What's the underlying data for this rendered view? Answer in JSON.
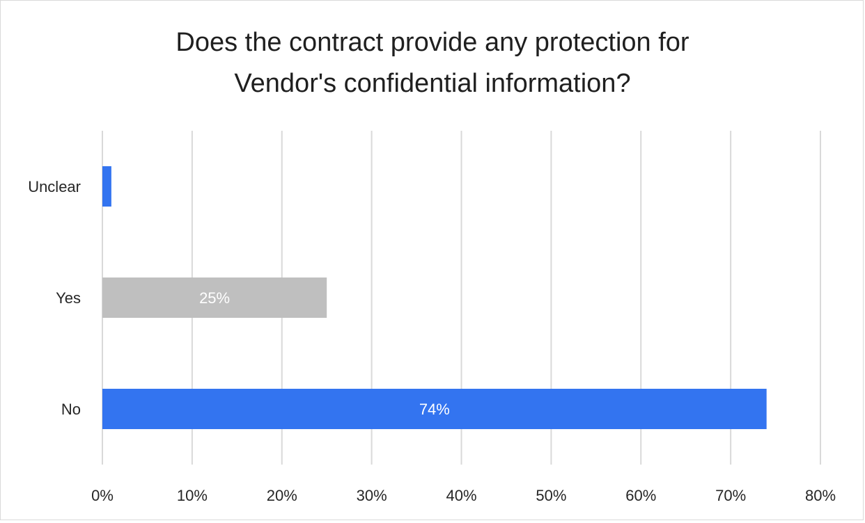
{
  "chart_data": {
    "type": "bar",
    "orientation": "horizontal",
    "title_lines": [
      "Does the contract provide any protection for",
      "Vendor's confidential information?"
    ],
    "categories": [
      "Unclear",
      "Yes",
      "No"
    ],
    "values": [
      1,
      25,
      74
    ],
    "data_labels": [
      "",
      "25%",
      "74%"
    ],
    "xlim": [
      0,
      80
    ],
    "x_ticks": [
      "0%",
      "10%",
      "20%",
      "30%",
      "40%",
      "50%",
      "60%",
      "70%",
      "80%"
    ],
    "xlabel": "",
    "ylabel": "",
    "grid": true,
    "legend": "none",
    "colors": {
      "Unclear": "#3374f0",
      "Yes": "#bfbfbf",
      "No": "#3374f0",
      "grid": "#d9d9d9"
    }
  }
}
